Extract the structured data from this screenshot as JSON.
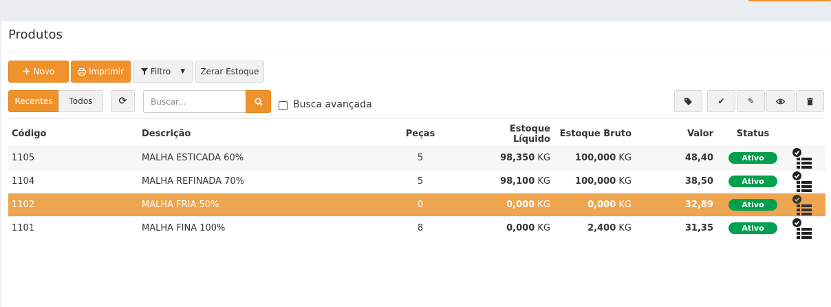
{
  "title": "Produtos",
  "toolbar": {
    "novo": "Novo",
    "imprimir": "Imprimir",
    "filtro": "Filtro",
    "zerar": "Zerar Estoque"
  },
  "filters": {
    "recentes": "Recentes",
    "todos": "Todos",
    "search_placeholder": "Buscar...",
    "advanced": "Busca avançada"
  },
  "colors": {
    "accent": "#f0922b",
    "selected_row": "#eda54f",
    "status_active": "#00a04e"
  },
  "table": {
    "headers": [
      "Código",
      "Descrição",
      "Peças",
      "Estoque Líquido",
      "Estoque Bruto",
      "Valor",
      "Status"
    ],
    "rows": [
      {
        "codigo": "1105",
        "descricao": "MALHA ESTICADA 60%",
        "pecas": "5",
        "liq": "98,350",
        "liq_unit": "KG",
        "bruto": "100,000",
        "bruto_unit": "KG",
        "valor": "48,40",
        "status": "Ativo"
      },
      {
        "codigo": "1104",
        "descricao": "MALHA REFINADA 70%",
        "pecas": "5",
        "liq": "98,100",
        "liq_unit": "KG",
        "bruto": "100,000",
        "bruto_unit": "KG",
        "valor": "38,50",
        "status": "Ativo"
      },
      {
        "codigo": "1102",
        "descricao": "MALHA FRIA 50%",
        "pecas": "0",
        "liq": "0,000",
        "liq_unit": "KG",
        "bruto": "0,000",
        "bruto_unit": "KG",
        "valor": "32,89",
        "status": "Ativo",
        "selected": true
      },
      {
        "codigo": "1101",
        "descricao": "MALHA FINA 100%",
        "pecas": "8",
        "liq": "0,000",
        "liq_unit": "KG",
        "bruto": "2,400",
        "bruto_unit": "KG",
        "valor": "31,35",
        "status": "Ativo"
      }
    ]
  }
}
